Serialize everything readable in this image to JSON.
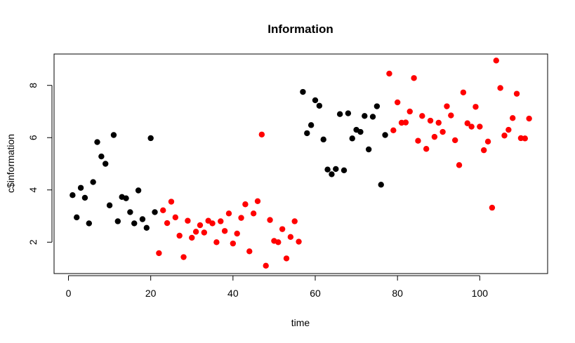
{
  "chart_data": {
    "type": "scatter",
    "title": "Information",
    "xlabel": "time",
    "ylabel": "c$information",
    "xlim": [
      -3.5,
      116.5
    ],
    "ylim": [
      0.8,
      9.2
    ],
    "xticks": [
      0,
      20,
      40,
      60,
      80,
      100
    ],
    "yticks": [
      2,
      4,
      6,
      8
    ],
    "grid": false,
    "colors": {
      "black": "#000000",
      "red": "#ff0000"
    },
    "points": [
      {
        "x": 1,
        "y": 3.8,
        "c": "black"
      },
      {
        "x": 2,
        "y": 2.95,
        "c": "black"
      },
      {
        "x": 3,
        "y": 4.08,
        "c": "black"
      },
      {
        "x": 4,
        "y": 3.7,
        "c": "black"
      },
      {
        "x": 5,
        "y": 2.72,
        "c": "black"
      },
      {
        "x": 6,
        "y": 4.3,
        "c": "black"
      },
      {
        "x": 7,
        "y": 5.83,
        "c": "black"
      },
      {
        "x": 8,
        "y": 5.28,
        "c": "black"
      },
      {
        "x": 9,
        "y": 5.0,
        "c": "black"
      },
      {
        "x": 10,
        "y": 3.41,
        "c": "black"
      },
      {
        "x": 11,
        "y": 6.1,
        "c": "black"
      },
      {
        "x": 12,
        "y": 2.8,
        "c": "black"
      },
      {
        "x": 13,
        "y": 3.73,
        "c": "black"
      },
      {
        "x": 14,
        "y": 3.68,
        "c": "black"
      },
      {
        "x": 15,
        "y": 3.15,
        "c": "black"
      },
      {
        "x": 16,
        "y": 2.72,
        "c": "black"
      },
      {
        "x": 17,
        "y": 3.98,
        "c": "black"
      },
      {
        "x": 18,
        "y": 2.88,
        "c": "black"
      },
      {
        "x": 19,
        "y": 2.55,
        "c": "black"
      },
      {
        "x": 20,
        "y": 5.98,
        "c": "black"
      },
      {
        "x": 21,
        "y": 3.15,
        "c": "black"
      },
      {
        "x": 22,
        "y": 1.58,
        "c": "red"
      },
      {
        "x": 23,
        "y": 3.22,
        "c": "red"
      },
      {
        "x": 24,
        "y": 2.73,
        "c": "red"
      },
      {
        "x": 25,
        "y": 3.55,
        "c": "red"
      },
      {
        "x": 26,
        "y": 2.95,
        "c": "red"
      },
      {
        "x": 27,
        "y": 2.25,
        "c": "red"
      },
      {
        "x": 28,
        "y": 1.43,
        "c": "red"
      },
      {
        "x": 29,
        "y": 2.82,
        "c": "red"
      },
      {
        "x": 30,
        "y": 2.17,
        "c": "red"
      },
      {
        "x": 31,
        "y": 2.4,
        "c": "red"
      },
      {
        "x": 32,
        "y": 2.65,
        "c": "red"
      },
      {
        "x": 33,
        "y": 2.37,
        "c": "red"
      },
      {
        "x": 34,
        "y": 2.82,
        "c": "red"
      },
      {
        "x": 35,
        "y": 2.72,
        "c": "red"
      },
      {
        "x": 36,
        "y": 2.0,
        "c": "red"
      },
      {
        "x": 37,
        "y": 2.8,
        "c": "red"
      },
      {
        "x": 38,
        "y": 2.43,
        "c": "red"
      },
      {
        "x": 39,
        "y": 3.1,
        "c": "red"
      },
      {
        "x": 40,
        "y": 1.95,
        "c": "red"
      },
      {
        "x": 41,
        "y": 2.33,
        "c": "red"
      },
      {
        "x": 42,
        "y": 2.93,
        "c": "red"
      },
      {
        "x": 43,
        "y": 3.45,
        "c": "red"
      },
      {
        "x": 44,
        "y": 1.65,
        "c": "red"
      },
      {
        "x": 45,
        "y": 3.1,
        "c": "red"
      },
      {
        "x": 46,
        "y": 3.57,
        "c": "red"
      },
      {
        "x": 47,
        "y": 6.12,
        "c": "red"
      },
      {
        "x": 48,
        "y": 1.1,
        "c": "red"
      },
      {
        "x": 49,
        "y": 2.85,
        "c": "red"
      },
      {
        "x": 50,
        "y": 2.05,
        "c": "red"
      },
      {
        "x": 51,
        "y": 2.0,
        "c": "red"
      },
      {
        "x": 52,
        "y": 2.5,
        "c": "red"
      },
      {
        "x": 53,
        "y": 1.38,
        "c": "red"
      },
      {
        "x": 54,
        "y": 2.2,
        "c": "red"
      },
      {
        "x": 55,
        "y": 2.8,
        "c": "red"
      },
      {
        "x": 56,
        "y": 2.02,
        "c": "red"
      },
      {
        "x": 57,
        "y": 7.75,
        "c": "black"
      },
      {
        "x": 58,
        "y": 6.17,
        "c": "black"
      },
      {
        "x": 59,
        "y": 6.48,
        "c": "black"
      },
      {
        "x": 60,
        "y": 7.43,
        "c": "black"
      },
      {
        "x": 61,
        "y": 7.22,
        "c": "black"
      },
      {
        "x": 62,
        "y": 5.93,
        "c": "black"
      },
      {
        "x": 63,
        "y": 4.78,
        "c": "black"
      },
      {
        "x": 64,
        "y": 4.6,
        "c": "black"
      },
      {
        "x": 65,
        "y": 4.8,
        "c": "black"
      },
      {
        "x": 66,
        "y": 6.9,
        "c": "black"
      },
      {
        "x": 67,
        "y": 4.75,
        "c": "black"
      },
      {
        "x": 68,
        "y": 6.93,
        "c": "black"
      },
      {
        "x": 69,
        "y": 5.97,
        "c": "black"
      },
      {
        "x": 70,
        "y": 6.3,
        "c": "black"
      },
      {
        "x": 71,
        "y": 6.22,
        "c": "black"
      },
      {
        "x": 72,
        "y": 6.83,
        "c": "black"
      },
      {
        "x": 73,
        "y": 5.55,
        "c": "black"
      },
      {
        "x": 74,
        "y": 6.8,
        "c": "black"
      },
      {
        "x": 75,
        "y": 7.2,
        "c": "black"
      },
      {
        "x": 76,
        "y": 4.2,
        "c": "black"
      },
      {
        "x": 77,
        "y": 6.1,
        "c": "black"
      },
      {
        "x": 78,
        "y": 8.45,
        "c": "red"
      },
      {
        "x": 79,
        "y": 6.28,
        "c": "red"
      },
      {
        "x": 80,
        "y": 7.35,
        "c": "red"
      },
      {
        "x": 81,
        "y": 6.57,
        "c": "red"
      },
      {
        "x": 82,
        "y": 6.58,
        "c": "red"
      },
      {
        "x": 83,
        "y": 7.0,
        "c": "red"
      },
      {
        "x": 84,
        "y": 8.28,
        "c": "red"
      },
      {
        "x": 85,
        "y": 5.88,
        "c": "red"
      },
      {
        "x": 86,
        "y": 6.83,
        "c": "red"
      },
      {
        "x": 87,
        "y": 5.57,
        "c": "red"
      },
      {
        "x": 88,
        "y": 6.65,
        "c": "red"
      },
      {
        "x": 89,
        "y": 6.03,
        "c": "red"
      },
      {
        "x": 90,
        "y": 6.57,
        "c": "red"
      },
      {
        "x": 91,
        "y": 6.22,
        "c": "red"
      },
      {
        "x": 92,
        "y": 7.2,
        "c": "red"
      },
      {
        "x": 93,
        "y": 6.85,
        "c": "red"
      },
      {
        "x": 94,
        "y": 5.9,
        "c": "red"
      },
      {
        "x": 95,
        "y": 4.95,
        "c": "red"
      },
      {
        "x": 96,
        "y": 7.73,
        "c": "red"
      },
      {
        "x": 97,
        "y": 6.55,
        "c": "red"
      },
      {
        "x": 98,
        "y": 6.42,
        "c": "red"
      },
      {
        "x": 99,
        "y": 7.18,
        "c": "red"
      },
      {
        "x": 100,
        "y": 6.42,
        "c": "red"
      },
      {
        "x": 101,
        "y": 5.52,
        "c": "red"
      },
      {
        "x": 102,
        "y": 5.85,
        "c": "red"
      },
      {
        "x": 103,
        "y": 3.32,
        "c": "red"
      },
      {
        "x": 104,
        "y": 8.95,
        "c": "red"
      },
      {
        "x": 105,
        "y": 7.9,
        "c": "red"
      },
      {
        "x": 106,
        "y": 6.08,
        "c": "red"
      },
      {
        "x": 107,
        "y": 6.3,
        "c": "red"
      },
      {
        "x": 108,
        "y": 6.75,
        "c": "red"
      },
      {
        "x": 109,
        "y": 7.68,
        "c": "red"
      },
      {
        "x": 110,
        "y": 5.98,
        "c": "red"
      },
      {
        "x": 111,
        "y": 5.97,
        "c": "red"
      },
      {
        "x": 112,
        "y": 6.73,
        "c": "red"
      }
    ]
  }
}
